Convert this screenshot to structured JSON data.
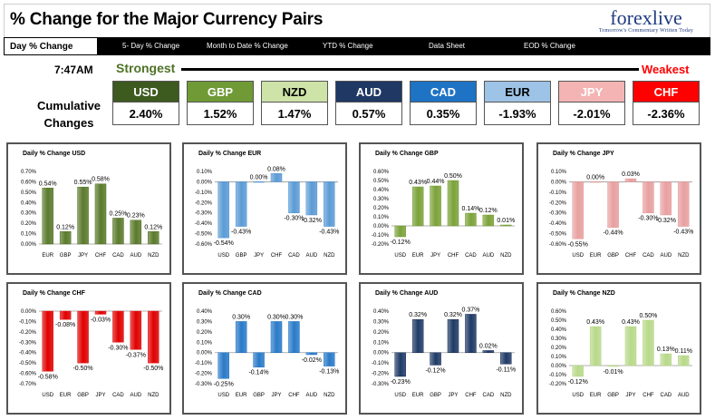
{
  "header": {
    "title": "% Change for the Major Currency Pairs",
    "logo": {
      "brand": "forexlive",
      "tagline": "Tomorrow's Commentary Written Today"
    }
  },
  "nav": {
    "tabs": [
      {
        "label": "Day % Change",
        "active": true
      },
      {
        "label": "5- Day % Change",
        "active": false
      },
      {
        "label": "Month to Date % Change",
        "active": false
      },
      {
        "label": "YTD % Change",
        "active": false
      },
      {
        "label": "Data Sheet",
        "active": false
      },
      {
        "label": "EOD % Change",
        "active": false
      }
    ]
  },
  "summary": {
    "time": "7:47AM",
    "strongest_label": "Strongest",
    "weakest_label": "Weakest",
    "cumulative_label_line1": "Cumulative",
    "cumulative_label_line2": "Changes",
    "currencies": [
      {
        "code": "USD",
        "value": "2.40%",
        "bg": "#3d5a1f",
        "fg": "#ffffff"
      },
      {
        "code": "GBP",
        "value": "1.52%",
        "bg": "#6f9a36",
        "fg": "#ffffff"
      },
      {
        "code": "NZD",
        "value": "1.47%",
        "bg": "#cde3a8",
        "fg": "#000000"
      },
      {
        "code": "AUD",
        "value": "0.57%",
        "bg": "#1f3864",
        "fg": "#ffffff"
      },
      {
        "code": "CAD",
        "value": "0.35%",
        "bg": "#1f73c4",
        "fg": "#ffffff"
      },
      {
        "code": "EUR",
        "value": "-1.93%",
        "bg": "#9dc3e6",
        "fg": "#000000"
      },
      {
        "code": "JPY",
        "value": "-2.01%",
        "bg": "#f4b4b4",
        "fg": "#ffffff"
      },
      {
        "code": "CHF",
        "value": "-2.36%",
        "bg": "#ff0000",
        "fg": "#ffffff"
      }
    ]
  },
  "chart_data": [
    {
      "type": "bar",
      "title": "Daily % Change USD",
      "color": "#5a7a2c",
      "categories": [
        "EUR",
        "GBP",
        "JPY",
        "CHF",
        "CAD",
        "AUD",
        "NZD"
      ],
      "values": [
        0.54,
        0.12,
        0.55,
        0.58,
        0.25,
        0.23,
        0.12
      ],
      "labels": [
        "0.54%",
        "0.12%",
        "0.55%",
        "0.58%",
        "0.25%",
        "0.23%",
        "0.12%"
      ],
      "ylim": [
        0,
        0.7
      ],
      "yticks": [
        "0.00%",
        "0.10%",
        "0.20%",
        "0.30%",
        "0.40%",
        "0.50%",
        "0.60%",
        "0.70%"
      ]
    },
    {
      "type": "bar",
      "title": "Daily % Change EUR",
      "color": "#5b9bd5",
      "categories": [
        "USD",
        "GBP",
        "JPY",
        "CHF",
        "CAD",
        "AUD",
        "NZD"
      ],
      "values": [
        -0.54,
        -0.43,
        0.0,
        0.08,
        -0.3,
        -0.32,
        -0.43
      ],
      "labels": [
        "-0.54%",
        "-0.43%",
        "0.00%",
        "0.08%",
        "-0.30%",
        "-0.32%",
        "-0.43%"
      ],
      "ylim": [
        -0.6,
        0.1
      ],
      "yticks": [
        "-0.60%",
        "-0.50%",
        "-0.40%",
        "-0.30%",
        "-0.20%",
        "-0.10%",
        "0.00%",
        "0.10%"
      ]
    },
    {
      "type": "bar",
      "title": "Daily % Change GBP",
      "color": "#7ba23a",
      "categories": [
        "USD",
        "EUR",
        "JPY",
        "CHF",
        "CAD",
        "AUD",
        "NZD"
      ],
      "values": [
        -0.12,
        0.43,
        0.44,
        0.5,
        0.14,
        0.12,
        0.01
      ],
      "labels": [
        "-0.12%",
        "0.43%",
        "0.44%",
        "0.50%",
        "0.14%",
        "0.12%",
        "0.01%"
      ],
      "ylim": [
        -0.2,
        0.6
      ],
      "yticks": [
        "-0.20%",
        "-0.10%",
        "0.00%",
        "0.10%",
        "0.20%",
        "0.30%",
        "0.40%",
        "0.50%",
        "0.60%"
      ]
    },
    {
      "type": "bar",
      "title": "Daily % Change JPY",
      "color": "#e8a0a0",
      "categories": [
        "USD",
        "EUR",
        "GBP",
        "CHF",
        "CAD",
        "AUD",
        "NZD"
      ],
      "values": [
        -0.55,
        0.0,
        -0.44,
        0.03,
        -0.3,
        -0.32,
        -0.43
      ],
      "labels": [
        "-0.55%",
        "0.00%",
        "-0.44%",
        "0.03%",
        "-0.30%",
        "-0.32%",
        "-0.43%"
      ],
      "ylim": [
        -0.6,
        0.1
      ],
      "yticks": [
        "-0.60%",
        "-0.50%",
        "-0.40%",
        "-0.30%",
        "-0.20%",
        "-0.10%",
        "0.00%",
        "0.10%"
      ]
    },
    {
      "type": "bar",
      "title": "Daily % Change CHF",
      "color": "#e00000",
      "categories": [
        "USD",
        "EUR",
        "GBP",
        "JPY",
        "CAD",
        "AUD",
        "NZD"
      ],
      "values": [
        -0.58,
        -0.08,
        -0.5,
        -0.03,
        -0.3,
        -0.37,
        -0.5
      ],
      "labels": [
        "-0.58%",
        "-0.08%",
        "-0.50%",
        "-0.03%",
        "-0.30%",
        "-0.37%",
        "-0.50%"
      ],
      "ylim": [
        -0.7,
        0.0
      ],
      "yticks": [
        "-0.70%",
        "-0.60%",
        "-0.50%",
        "-0.40%",
        "-0.30%",
        "-0.20%",
        "-0.10%",
        "0.00%"
      ]
    },
    {
      "type": "bar",
      "title": "Daily % Change CAD",
      "color": "#2a7ac8",
      "categories": [
        "USD",
        "EUR",
        "GBP",
        "JPY",
        "CHF",
        "AUD",
        "NZD"
      ],
      "values": [
        -0.25,
        0.3,
        -0.14,
        0.3,
        0.3,
        -0.02,
        -0.13
      ],
      "labels": [
        "-0.25%",
        "0.30%",
        "-0.14%",
        "0.30%",
        "0.30%",
        "-0.02%",
        "-0.13%"
      ],
      "ylim": [
        -0.3,
        0.4
      ],
      "yticks": [
        "-0.30%",
        "-0.20%",
        "-0.10%",
        "0.00%",
        "0.10%",
        "0.20%",
        "0.30%",
        "0.40%"
      ]
    },
    {
      "type": "bar",
      "title": "Daily % Change AUD",
      "color": "#1f3a66",
      "categories": [
        "USD",
        "EUR",
        "GBP",
        "JPY",
        "CHF",
        "CAD",
        "NZD"
      ],
      "values": [
        -0.23,
        0.32,
        -0.12,
        0.32,
        0.37,
        0.02,
        -0.11
      ],
      "labels": [
        "-0.23%",
        "0.32%",
        "-0.12%",
        "0.32%",
        "0.37%",
        "0.02%",
        "-0.11%"
      ],
      "ylim": [
        -0.3,
        0.4
      ],
      "yticks": [
        "-0.30%",
        "-0.20%",
        "-0.10%",
        "0.00%",
        "0.10%",
        "0.20%",
        "0.30%",
        "0.40%"
      ]
    },
    {
      "type": "bar",
      "title": "Daily % Change NZD",
      "color": "#b8d98a",
      "categories": [
        "USD",
        "EUR",
        "GBP",
        "JPY",
        "CHF",
        "CAD",
        "AUD"
      ],
      "values": [
        -0.12,
        0.43,
        -0.01,
        0.43,
        0.5,
        0.13,
        0.11
      ],
      "labels": [
        "-0.12%",
        "0.43%",
        "-0.01%",
        "0.43%",
        "0.50%",
        "0.13%",
        "0.11%"
      ],
      "ylim": [
        -0.2,
        0.6
      ],
      "yticks": [
        "-0.20%",
        "-0.10%",
        "0.00%",
        "0.10%",
        "0.20%",
        "0.30%",
        "0.40%",
        "0.50%",
        "0.60%"
      ]
    }
  ]
}
